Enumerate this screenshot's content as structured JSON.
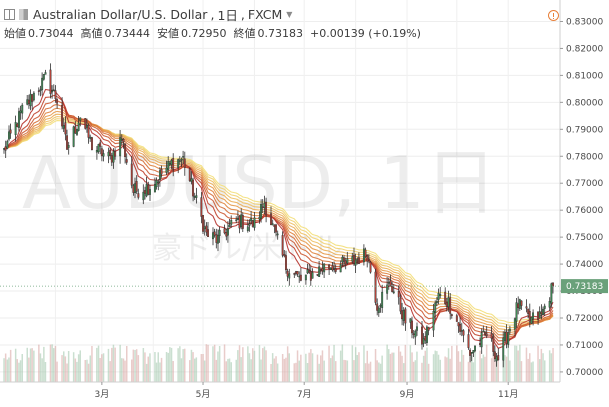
{
  "header": {
    "symbol_title": "Australian Dollar/U.S. Dollar",
    "interval": "1日",
    "exchange": "FXCM",
    "open_label": "始値",
    "open": "0.73044",
    "high_label": "高値",
    "high": "0.73444",
    "low_label": "安値",
    "low": "0.72950",
    "close_label": "終値",
    "close": "0.73183",
    "change": "+0.00139 (+0.19%)"
  },
  "watermark": {
    "symbol": "AUDUSD, 1日",
    "name": "豪ドル/米ドル"
  },
  "last_price_label": "0.73183",
  "colors": {
    "up": "#3f8a55",
    "down": "#b0433a",
    "last_price": "#6aa17a",
    "ribbon_start": "#b5322c",
    "ribbon_end": "#f3df7a"
  },
  "chart_data": {
    "type": "candlestick",
    "title": "Australian Dollar/U.S. Dollar, 1日, FXCM",
    "ylim": [
      0.697,
      0.835
    ],
    "y_ticks": [
      "0.70000",
      "0.71000",
      "0.72000",
      "0.73000",
      "0.74000",
      "0.75000",
      "0.76000",
      "0.77000",
      "0.78000",
      "0.79000",
      "0.80000",
      "0.81000",
      "0.82000",
      "0.83000"
    ],
    "x_ticks": [
      "3月",
      "5月",
      "7月",
      "9月",
      "11月"
    ],
    "x_range": [
      "2018-01-01",
      "2018-11-28"
    ],
    "last_close": 0.73183,
    "overlays": "moving-average ribbon (multiple EMAs, red to yellow)",
    "volume": "histogram at bottom",
    "grid": true,
    "anchors": [
      [
        "2018-01-01",
        0.782
      ],
      [
        "2018-01-12",
        0.797
      ],
      [
        "2018-01-26",
        0.809
      ],
      [
        "2018-02-02",
        0.801
      ],
      [
        "2018-02-08",
        0.783
      ],
      [
        "2018-02-16",
        0.795
      ],
      [
        "2018-02-23",
        0.784
      ],
      [
        "2018-03-06",
        0.779
      ],
      [
        "2018-03-13",
        0.787
      ],
      [
        "2018-03-20",
        0.767
      ],
      [
        "2018-03-30",
        0.769
      ],
      [
        "2018-04-13",
        0.778
      ],
      [
        "2018-04-19",
        0.779
      ],
      [
        "2018-05-03",
        0.751
      ],
      [
        "2018-05-10",
        0.749
      ],
      [
        "2018-05-21",
        0.756
      ],
      [
        "2018-06-01",
        0.755
      ],
      [
        "2018-06-07",
        0.763
      ],
      [
        "2018-06-20",
        0.739
      ],
      [
        "2018-06-29",
        0.734
      ],
      [
        "2018-07-13",
        0.739
      ],
      [
        "2018-07-27",
        0.74
      ],
      [
        "2018-08-08",
        0.744
      ],
      [
        "2018-08-14",
        0.725
      ],
      [
        "2018-08-22",
        0.733
      ],
      [
        "2018-08-31",
        0.719
      ],
      [
        "2018-09-11",
        0.711
      ],
      [
        "2018-09-20",
        0.728
      ],
      [
        "2018-09-26",
        0.726
      ],
      [
        "2018-10-09",
        0.707
      ],
      [
        "2018-10-19",
        0.714
      ],
      [
        "2018-10-26",
        0.705
      ],
      [
        "2018-11-07",
        0.725
      ],
      [
        "2018-11-14",
        0.719
      ],
      [
        "2018-11-21",
        0.721
      ],
      [
        "2018-11-28",
        0.7318
      ]
    ]
  }
}
